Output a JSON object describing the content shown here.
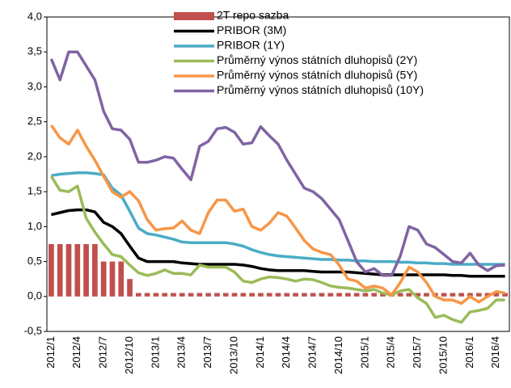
{
  "chart_data": {
    "type": "line",
    "categories": [
      "2012/1",
      null,
      null,
      "2012/4",
      null,
      null,
      "2012/7",
      null,
      null,
      "2012/10",
      null,
      null,
      "2013/1",
      null,
      null,
      "2013/4",
      null,
      null,
      "2013/7",
      null,
      null,
      "2013/10",
      null,
      null,
      "2014/1",
      null,
      null,
      "2014/4",
      null,
      null,
      "2014/7",
      null,
      null,
      "2014/10",
      null,
      null,
      "2015/1",
      null,
      null,
      "2015/4",
      null,
      null,
      "2015/7",
      null,
      null,
      "2015/10",
      null,
      null,
      "2016/1",
      null,
      null,
      "2016/4",
      null
    ],
    "series": [
      {
        "name": "2T repo sazba",
        "type": "bar",
        "color": "#c0504d",
        "values": [
          0.75,
          0.75,
          0.75,
          0.75,
          0.75,
          0.75,
          0.5,
          0.5,
          0.5,
          0.25,
          0.05,
          0.05,
          0.05,
          0.05,
          0.05,
          0.05,
          0.05,
          0.05,
          0.05,
          0.05,
          0.05,
          0.05,
          0.05,
          0.05,
          0.05,
          0.05,
          0.05,
          0.05,
          0.05,
          0.05,
          0.05,
          0.05,
          0.05,
          0.05,
          0.05,
          0.05,
          0.05,
          0.05,
          0.05,
          0.05,
          0.05,
          0.05,
          0.05,
          0.05,
          0.05,
          0.05,
          0.05,
          0.05,
          0.05,
          0.05,
          0.05,
          0.05,
          0.05
        ]
      },
      {
        "name": "PRIBOR (3M)",
        "type": "line",
        "color": "#000000",
        "values": [
          1.17,
          1.2,
          1.23,
          1.24,
          1.24,
          1.21,
          1.06,
          1.0,
          0.9,
          0.72,
          0.55,
          0.5,
          0.5,
          0.5,
          0.5,
          0.48,
          0.47,
          0.46,
          0.46,
          0.46,
          0.46,
          0.46,
          0.45,
          0.43,
          0.4,
          0.38,
          0.37,
          0.37,
          0.37,
          0.37,
          0.36,
          0.35,
          0.35,
          0.35,
          0.35,
          0.34,
          0.33,
          0.32,
          0.31,
          0.31,
          0.31,
          0.31,
          0.31,
          0.31,
          0.31,
          0.31,
          0.3,
          0.3,
          0.29,
          0.29,
          0.29,
          0.29,
          0.29
        ]
      },
      {
        "name": "PRIBOR (1Y)",
        "type": "line",
        "color": "#4bacc6",
        "values": [
          1.73,
          1.75,
          1.76,
          1.77,
          1.77,
          1.76,
          1.74,
          1.55,
          1.45,
          1.22,
          0.98,
          0.9,
          0.88,
          0.85,
          0.82,
          0.78,
          0.77,
          0.77,
          0.77,
          0.77,
          0.77,
          0.75,
          0.72,
          0.67,
          0.63,
          0.6,
          0.58,
          0.57,
          0.56,
          0.55,
          0.54,
          0.53,
          0.53,
          0.52,
          0.52,
          0.51,
          0.51,
          0.5,
          0.5,
          0.5,
          0.49,
          0.49,
          0.48,
          0.48,
          0.47,
          0.47,
          0.46,
          0.46,
          0.46,
          0.46,
          0.46,
          0.46,
          0.46
        ]
      },
      {
        "name": "Průměrný výnos státních dluhopisů (2Y)",
        "type": "line",
        "color": "#9bbb59",
        "values": [
          1.72,
          1.52,
          1.5,
          1.58,
          1.12,
          0.92,
          0.75,
          0.6,
          0.57,
          0.45,
          0.34,
          0.3,
          0.33,
          0.38,
          0.33,
          0.33,
          0.31,
          0.45,
          0.42,
          0.42,
          0.42,
          0.35,
          0.22,
          0.2,
          0.25,
          0.28,
          0.27,
          0.25,
          0.22,
          0.25,
          0.24,
          0.2,
          0.15,
          0.13,
          0.12,
          0.1,
          0.08,
          0.1,
          0.05,
          0.02,
          0.08,
          0.1,
          -0.02,
          -0.1,
          -0.3,
          -0.27,
          -0.33,
          -0.37,
          -0.22,
          -0.2,
          -0.17,
          -0.05,
          -0.05
        ]
      },
      {
        "name": "Průměrný výnos státních dluhopisů (5Y)",
        "type": "line",
        "color": "#f79646",
        "values": [
          2.45,
          2.27,
          2.18,
          2.38,
          2.15,
          1.95,
          1.72,
          1.5,
          1.42,
          1.5,
          1.37,
          1.1,
          0.95,
          0.97,
          0.98,
          1.08,
          0.95,
          0.9,
          1.2,
          1.38,
          1.38,
          1.22,
          1.25,
          1.0,
          0.95,
          1.05,
          1.2,
          1.15,
          0.98,
          0.8,
          0.68,
          0.63,
          0.6,
          0.45,
          0.25,
          0.22,
          0.12,
          0.15,
          0.12,
          0.02,
          0.2,
          0.42,
          0.35,
          0.2,
          0.0,
          -0.05,
          -0.05,
          -0.1,
          0.0,
          -0.08,
          0.0,
          0.07,
          0.05
        ]
      },
      {
        "name": "Průměrný výnos státních dluhopisů (10Y)",
        "type": "line",
        "color": "#8064a2",
        "values": [
          3.4,
          3.1,
          3.5,
          3.5,
          3.3,
          3.1,
          2.65,
          2.4,
          2.38,
          2.25,
          1.92,
          1.92,
          1.95,
          2.0,
          1.98,
          1.82,
          1.67,
          2.15,
          2.22,
          2.4,
          2.42,
          2.35,
          2.18,
          2.2,
          2.43,
          2.3,
          2.18,
          1.95,
          1.75,
          1.55,
          1.5,
          1.4,
          1.25,
          1.1,
          0.8,
          0.5,
          0.35,
          0.4,
          0.3,
          0.3,
          0.58,
          1.0,
          0.95,
          0.75,
          0.7,
          0.6,
          0.5,
          0.48,
          0.62,
          0.45,
          0.37,
          0.44,
          0.45
        ]
      }
    ],
    "ylim": [
      -0.5,
      4.0
    ],
    "yticks": [
      {
        "value": -0.5,
        "label": "-0,5"
      },
      {
        "value": 0,
        "label": "0,0"
      },
      {
        "value": 0.5,
        "label": "0,5"
      },
      {
        "value": 1.0,
        "label": "1,0"
      },
      {
        "value": 1.5,
        "label": "1,5"
      },
      {
        "value": 2.0,
        "label": "2,0"
      },
      {
        "value": 2.5,
        "label": "2,5"
      },
      {
        "value": 3.0,
        "label": "3,0"
      },
      {
        "value": 3.5,
        "label": "3,5"
      },
      {
        "value": 4.0,
        "label": "4,0"
      }
    ],
    "legend": "top"
  }
}
